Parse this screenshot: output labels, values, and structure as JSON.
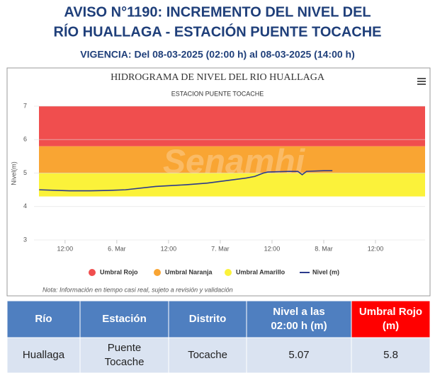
{
  "header": {
    "title": [
      "AVISO N°1190: INCREMENTO DEL NIVEL DEL",
      "RÍO HUALLAGA - ESTACIÓN PUENTE TOCACHE"
    ],
    "validity": "VIGENCIA: Del 08-03-2025 (02:00 h) al 08-03-2025 (14:00 h)"
  },
  "chart_data": {
    "type": "line",
    "title": "HIDROGRAMA DE NIVEL DEL RIO HUALLAGA",
    "subtitle": "ESTACION PUENTE TOCACHE",
    "y_label": "Nivel(m)",
    "watermark": "Senamhi",
    "thresholds": [
      {
        "name": "Umbral Rojo",
        "color": "#f04e4e",
        "range": [
          5.8,
          7
        ]
      },
      {
        "name": "Umbral Naranja",
        "color": "#f9a533",
        "range": [
          5,
          5.8
        ]
      },
      {
        "name": "Umbral Amarillo",
        "color": "#fbf23a",
        "range": [
          4.3,
          5
        ]
      }
    ],
    "x": [
      -18,
      -11,
      -6,
      -2,
      2,
      9,
      16,
      21,
      24,
      27,
      30,
      32,
      34,
      35,
      40,
      42,
      43,
      44,
      48,
      50
    ],
    "series": [
      {
        "name": "Nivel (m)",
        "color": "#2b3a8c",
        "values": [
          4.5,
          4.47,
          4.47,
          4.48,
          4.5,
          4.6,
          4.65,
          4.7,
          4.75,
          4.8,
          4.85,
          4.9,
          5.0,
          5.03,
          5.05,
          5.05,
          4.95,
          5.05,
          5.07,
          5.07
        ]
      }
    ],
    "xlim": [
      -19.2,
      71.5
    ],
    "xticks": [
      {
        "value": -12,
        "label": "12:00"
      },
      {
        "value": 0,
        "label": "6. Mar"
      },
      {
        "value": 12,
        "label": "12:00"
      },
      {
        "value": 24,
        "label": "7. Mar"
      },
      {
        "value": 36,
        "label": "12:00"
      },
      {
        "value": 48,
        "label": "8. Mar"
      },
      {
        "value": 60,
        "label": "12:00"
      }
    ],
    "ylim": [
      3,
      7
    ],
    "yticks": [
      3,
      4,
      5,
      6,
      7
    ],
    "grid": true,
    "note": "Nota: Información en tiempo casi real, sujeto a revisión y validación"
  },
  "table": {
    "header": [
      "Río",
      "Estación",
      "Distrito",
      "Nivel a las 02:00 h (m)",
      "Umbral Rojo (m)"
    ],
    "rows": [
      [
        "Huallaga",
        "Puente Tocache",
        "Tocache",
        5.07,
        5.8
      ]
    ]
  }
}
